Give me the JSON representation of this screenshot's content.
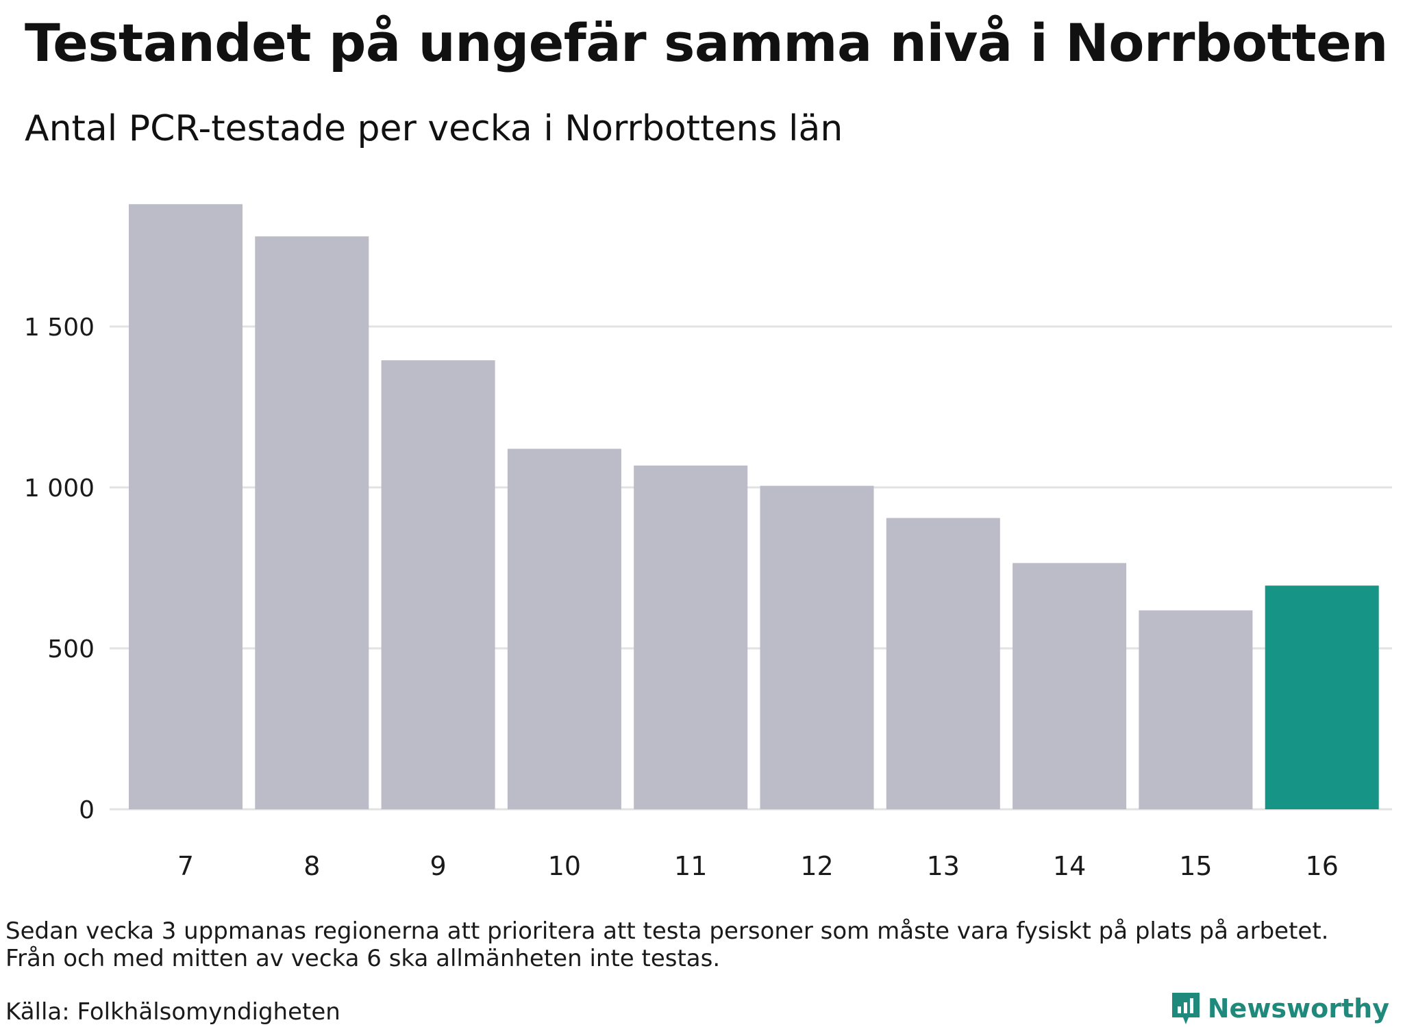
{
  "title": "Testandet på ungefär samma nivå i Norrbotten",
  "subtitle": "Antal PCR-testade per vecka i Norrbottens län",
  "note": [
    "Sedan vecka 3 uppmanas regionerna att prioritera att testa personer som måste vara fysiskt på plats på arbetet.",
    "Från och med mitten av vecka 6 ska allmänheten inte testas."
  ],
  "source": "Källa: Folkhälsomyndigheten",
  "brand": {
    "name": "Newsworthy",
    "icon": "newsworthy-logo-icon",
    "color": "#1f8a7c"
  },
  "chart_data": {
    "type": "bar",
    "title": "Testandet på ungefär samma nivå i Norrbotten",
    "subtitle": "Antal PCR-testade per vecka i Norrbottens län",
    "xlabel": "",
    "ylabel": "",
    "categories": [
      "7",
      "8",
      "9",
      "10",
      "11",
      "12",
      "13",
      "14",
      "15",
      "16"
    ],
    "values": [
      1880,
      1780,
      1395,
      1120,
      1068,
      1005,
      905,
      765,
      618,
      695
    ],
    "highlight_index": 9,
    "ylim": [
      0,
      1950
    ],
    "yticks": [
      0,
      500,
      1000,
      1500
    ],
    "ytick_labels": [
      "0",
      "500",
      "1 000",
      "1 500"
    ],
    "grid": true,
    "colors": {
      "bar": "#bcbbc8",
      "highlight": "#169485",
      "grid": "#e2e2e2"
    }
  }
}
